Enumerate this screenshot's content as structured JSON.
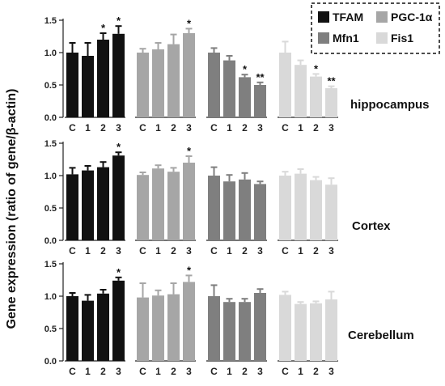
{
  "chart_data": {
    "type": "bar",
    "ylabel": "Gene expression (ratio of gene/β-actin)",
    "categories": [
      "C",
      "1",
      "2",
      "3"
    ],
    "legend": [
      {
        "name": "TFAM",
        "color": "#111111"
      },
      {
        "name": "PGC-1α",
        "color": "#a6a6a6"
      },
      {
        "name": "Mfn1",
        "color": "#7f7f7f"
      },
      {
        "name": "Fis1",
        "color": "#d9d9d9"
      }
    ],
    "legend_placement": "top-right",
    "panels": [
      {
        "region": "hippocampus",
        "ylim": [
          0,
          1.5
        ],
        "yticks": [
          "0.0",
          "0.5",
          "1.0",
          "1.5"
        ],
        "series": [
          {
            "name": "TFAM",
            "values": [
              1.0,
              0.95,
              1.2,
              1.29
            ],
            "errors": [
              0.15,
              0.2,
              0.1,
              0.12
            ],
            "marks": [
              "",
              "",
              "*",
              "*"
            ]
          },
          {
            "name": "PGC-1α",
            "values": [
              1.0,
              1.05,
              1.13,
              1.3
            ],
            "errors": [
              0.06,
              0.1,
              0.15,
              0.07
            ],
            "marks": [
              "",
              "",
              "",
              "*"
            ]
          },
          {
            "name": "Mfn1",
            "values": [
              1.0,
              0.88,
              0.62,
              0.5
            ],
            "errors": [
              0.07,
              0.07,
              0.04,
              0.04
            ],
            "marks": [
              "",
              "",
              "*",
              "**"
            ]
          },
          {
            "name": "Fis1",
            "values": [
              1.0,
              0.81,
              0.63,
              0.45
            ],
            "errors": [
              0.17,
              0.07,
              0.04,
              0.03
            ],
            "marks": [
              "",
              "",
              "*",
              "**"
            ]
          }
        ]
      },
      {
        "region": "Cortex",
        "ylim": [
          0,
          1.5
        ],
        "yticks": [
          "0.0",
          "0.5",
          "1.0",
          "1.5"
        ],
        "series": [
          {
            "name": "TFAM",
            "values": [
              1.02,
              1.08,
              1.13,
              1.31
            ],
            "errors": [
              0.1,
              0.07,
              0.08,
              0.05
            ],
            "marks": [
              "",
              "",
              "",
              "*"
            ]
          },
          {
            "name": "PGC-1α",
            "values": [
              1.01,
              1.11,
              1.06,
              1.2
            ],
            "errors": [
              0.04,
              0.05,
              0.06,
              0.1
            ],
            "marks": [
              "",
              "",
              "",
              "*"
            ]
          },
          {
            "name": "Mfn1",
            "values": [
              1.0,
              0.91,
              0.94,
              0.87
            ],
            "errors": [
              0.13,
              0.1,
              0.1,
              0.04
            ],
            "marks": [
              "",
              "",
              "",
              ""
            ]
          },
          {
            "name": "Fis1",
            "values": [
              1.0,
              1.03,
              0.93,
              0.86
            ],
            "errors": [
              0.06,
              0.07,
              0.05,
              0.1
            ],
            "marks": [
              "",
              "",
              "",
              ""
            ]
          }
        ]
      },
      {
        "region": "Cerebellum",
        "ylim": [
          0,
          1.5
        ],
        "yticks": [
          "0.0",
          "0.5",
          "1.0",
          "1.5"
        ],
        "series": [
          {
            "name": "TFAM",
            "values": [
              1.0,
              0.93,
              1.04,
              1.24
            ],
            "errors": [
              0.05,
              0.09,
              0.06,
              0.05
            ],
            "marks": [
              "",
              "",
              "",
              "*"
            ]
          },
          {
            "name": "PGC-1α",
            "values": [
              0.98,
              1.01,
              1.03,
              1.22
            ],
            "errors": [
              0.22,
              0.08,
              0.17,
              0.1
            ],
            "marks": [
              "",
              "",
              "",
              "*"
            ]
          },
          {
            "name": "Mfn1",
            "values": [
              1.0,
              0.91,
              0.91,
              1.05
            ],
            "errors": [
              0.17,
              0.05,
              0.05,
              0.06
            ],
            "marks": [
              "",
              "",
              "",
              ""
            ]
          },
          {
            "name": "Fis1",
            "values": [
              1.02,
              0.88,
              0.89,
              0.95
            ],
            "errors": [
              0.05,
              0.03,
              0.03,
              0.12
            ],
            "marks": [
              "",
              "",
              "",
              ""
            ]
          }
        ]
      }
    ]
  }
}
